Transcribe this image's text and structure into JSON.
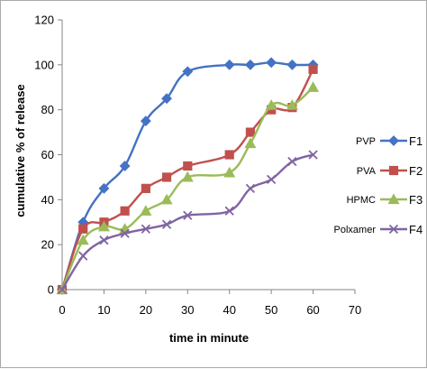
{
  "chart_data": {
    "type": "line",
    "title": "",
    "xlabel": "time in minute",
    "ylabel": "cumulative % of release",
    "xlim": [
      0,
      70
    ],
    "ylim": [
      0,
      120
    ],
    "xticks": [
      "0",
      "10",
      "20",
      "30",
      "40",
      "50",
      "60",
      "70"
    ],
    "yticks": [
      "0",
      "20",
      "40",
      "60",
      "80",
      "100",
      "120"
    ],
    "grid": false,
    "legend_position": "right",
    "x": [
      0,
      5,
      10,
      15,
      20,
      25,
      30,
      40,
      45,
      50,
      55,
      60
    ],
    "series": [
      {
        "name": "F1",
        "label": "PVP",
        "color": "#4472C4",
        "marker": "diamond",
        "values": [
          0,
          30,
          45,
          55,
          75,
          85,
          97,
          100,
          100,
          101,
          100,
          100
        ]
      },
      {
        "name": "F2",
        "label": "PVA",
        "color": "#C0504D",
        "marker": "square",
        "values": [
          0,
          27,
          30,
          35,
          45,
          50,
          55,
          60,
          70,
          80,
          81,
          98
        ]
      },
      {
        "name": "F3",
        "label": "HPMC",
        "color": "#9BBB59",
        "marker": "triangle",
        "values": [
          0,
          22,
          28,
          27,
          35,
          40,
          50,
          52,
          65,
          82,
          82,
          90
        ]
      },
      {
        "name": "F4",
        "label": "Polxamer",
        "color": "#8064A2",
        "marker": "x",
        "values": [
          0,
          15,
          22,
          25,
          27,
          29,
          33,
          35,
          45,
          49,
          57,
          60
        ]
      }
    ]
  }
}
